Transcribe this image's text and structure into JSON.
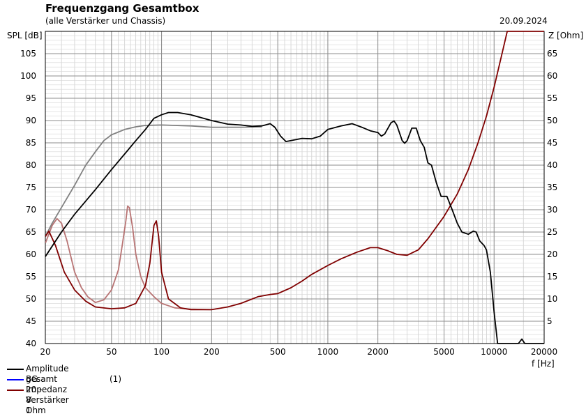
{
  "header": {
    "title": "Frequenzgang Gesamtbox",
    "subtitle": "(alle Verstärker und Chassis)",
    "date": "20.09.2024"
  },
  "chart_data": {
    "type": "line",
    "title": "Frequenzgang Gesamtbox",
    "subtitle": "(alle Verstärker und Chassis)",
    "xlabel": "f [Hz]",
    "ylabel_left": "SPL [dB]",
    "ylabel_right": "Z [Ohm]",
    "x_scale": "log",
    "xlim": [
      20,
      20000
    ],
    "ylim_left": [
      40,
      110
    ],
    "ylim_right": [
      0,
      70
    ],
    "grid": true,
    "legend_position": "bottom-left",
    "x_ticks": [
      20,
      50,
      100,
      200,
      500,
      1000,
      2000,
      5000,
      10000,
      20000
    ],
    "x_tick_labels": [
      "20",
      "50",
      "100",
      "200",
      "500",
      "1000",
      "2000",
      "5000",
      "10000",
      "20000"
    ],
    "y_left_ticks": [
      40,
      45,
      50,
      55,
      60,
      65,
      70,
      75,
      80,
      85,
      90,
      95,
      100,
      105
    ],
    "y_left_tick_labels": [
      "40",
      "45",
      "50",
      "55",
      "60",
      "65",
      "70",
      "75",
      "80",
      "85",
      "90",
      "95",
      "100",
      "105"
    ],
    "y_right_ticks": [
      5,
      10,
      15,
      20,
      25,
      30,
      35,
      40,
      45,
      50,
      55,
      60,
      65
    ],
    "y_right_tick_labels": [
      "5",
      "10",
      "15",
      "20",
      "25",
      "30",
      "35",
      "40",
      "45",
      "50",
      "55",
      "60",
      "65"
    ],
    "legend": [
      {
        "label": "Amplitude gesamt",
        "color": "#000000",
        "note": ""
      },
      {
        "label": "BG 20 - 8 Ohm",
        "color": "#0000ff",
        "note": "(1)"
      },
      {
        "label": "Impedanz Verstärker 1",
        "color": "#800000",
        "note": ""
      }
    ],
    "series": [
      {
        "name": "Amplitude gesamt",
        "axis": "left",
        "color": "#000000",
        "points": [
          [
            20,
            59.5
          ],
          [
            25,
            65
          ],
          [
            30,
            69
          ],
          [
            40,
            74.5
          ],
          [
            50,
            79
          ],
          [
            60,
            82.5
          ],
          [
            70,
            85.5
          ],
          [
            80,
            88
          ],
          [
            90,
            90.5
          ],
          [
            100,
            91.3
          ],
          [
            110,
            91.8
          ],
          [
            125,
            91.8
          ],
          [
            150,
            91.3
          ],
          [
            200,
            90
          ],
          [
            250,
            89.2
          ],
          [
            300,
            89
          ],
          [
            350,
            88.7
          ],
          [
            400,
            88.8
          ],
          [
            450,
            89.3
          ],
          [
            480,
            88.5
          ],
          [
            520,
            86.5
          ],
          [
            560,
            85.3
          ],
          [
            600,
            85.5
          ],
          [
            700,
            86
          ],
          [
            800,
            85.9
          ],
          [
            900,
            86.5
          ],
          [
            1000,
            88
          ],
          [
            1200,
            88.8
          ],
          [
            1400,
            89.3
          ],
          [
            1600,
            88.5
          ],
          [
            1800,
            87.7
          ],
          [
            2000,
            87.3
          ],
          [
            2100,
            86.5
          ],
          [
            2200,
            87
          ],
          [
            2400,
            89.5
          ],
          [
            2500,
            89.9
          ],
          [
            2600,
            89
          ],
          [
            2800,
            85.5
          ],
          [
            2900,
            84.9
          ],
          [
            3000,
            85.5
          ],
          [
            3200,
            88.3
          ],
          [
            3400,
            88.3
          ],
          [
            3600,
            85.5
          ],
          [
            3800,
            84
          ],
          [
            4000,
            80.5
          ],
          [
            4200,
            80
          ],
          [
            4500,
            76
          ],
          [
            4800,
            73
          ],
          [
            5200,
            73
          ],
          [
            5600,
            70
          ],
          [
            6000,
            67
          ],
          [
            6400,
            65
          ],
          [
            7000,
            64.5
          ],
          [
            7500,
            65.2
          ],
          [
            7800,
            65
          ],
          [
            8200,
            63
          ],
          [
            8700,
            62
          ],
          [
            9000,
            61
          ],
          [
            9500,
            56
          ],
          [
            10000,
            47
          ],
          [
            10500,
            40
          ],
          [
            12000,
            40
          ],
          [
            14000,
            40
          ],
          [
            14700,
            41
          ],
          [
            15300,
            40
          ],
          [
            20000,
            40
          ]
        ]
      },
      {
        "name": "",
        "axis": "left",
        "color": "#808080",
        "points": [
          [
            20,
            64
          ],
          [
            22,
            67
          ],
          [
            25,
            70.5
          ],
          [
            30,
            75.5
          ],
          [
            35,
            80
          ],
          [
            40,
            83
          ],
          [
            45,
            85.5
          ],
          [
            50,
            86.8
          ],
          [
            60,
            88
          ],
          [
            70,
            88.6
          ],
          [
            80,
            88.9
          ],
          [
            100,
            89
          ],
          [
            150,
            88.8
          ],
          [
            200,
            88.5
          ],
          [
            300,
            88.5
          ],
          [
            400,
            88.6
          ]
        ]
      },
      {
        "name": "Impedanz Verstärker 1",
        "axis": "right",
        "color": "#800000",
        "points": [
          [
            20,
            24
          ],
          [
            21,
            25.2
          ],
          [
            23,
            22
          ],
          [
            26,
            16
          ],
          [
            30,
            12
          ],
          [
            35,
            9.5
          ],
          [
            40,
            8.2
          ],
          [
            50,
            7.8
          ],
          [
            60,
            8
          ],
          [
            70,
            9
          ],
          [
            80,
            13
          ],
          [
            85,
            18
          ],
          [
            90,
            26.5
          ],
          [
            93,
            27.5
          ],
          [
            96,
            24
          ],
          [
            100,
            16
          ],
          [
            110,
            10
          ],
          [
            130,
            8
          ],
          [
            150,
            7.6
          ],
          [
            200,
            7.6
          ],
          [
            250,
            8.2
          ],
          [
            300,
            9
          ],
          [
            380,
            10.5
          ],
          [
            450,
            11
          ],
          [
            500,
            11.2
          ],
          [
            600,
            12.5
          ],
          [
            700,
            14
          ],
          [
            800,
            15.5
          ],
          [
            1000,
            17.5
          ],
          [
            1200,
            19
          ],
          [
            1500,
            20.5
          ],
          [
            1800,
            21.5
          ],
          [
            2000,
            21.5
          ],
          [
            2300,
            20.8
          ],
          [
            2600,
            20
          ],
          [
            3000,
            19.8
          ],
          [
            3500,
            21
          ],
          [
            4000,
            23.5
          ],
          [
            5000,
            28.5
          ],
          [
            6000,
            33.5
          ],
          [
            7000,
            39
          ],
          [
            8000,
            45
          ],
          [
            9000,
            51
          ],
          [
            10000,
            57.5
          ],
          [
            11000,
            64
          ],
          [
            12000,
            70
          ],
          [
            20000,
            70
          ]
        ]
      },
      {
        "name": "",
        "axis": "right",
        "color": "#b87474",
        "points": [
          [
            20,
            22.5
          ],
          [
            22,
            26.5
          ],
          [
            23.5,
            28
          ],
          [
            25,
            27
          ],
          [
            27,
            23
          ],
          [
            30,
            16
          ],
          [
            33,
            12.5
          ],
          [
            36,
            10.5
          ],
          [
            40,
            9.2
          ],
          [
            45,
            9.8
          ],
          [
            50,
            12
          ],
          [
            55,
            16.5
          ],
          [
            58,
            22
          ],
          [
            61,
            27.5
          ],
          [
            62.5,
            30.8
          ],
          [
            64,
            30.5
          ],
          [
            67,
            26
          ],
          [
            70,
            20
          ],
          [
            75,
            15
          ],
          [
            80,
            12.5
          ],
          [
            90,
            10.5
          ],
          [
            100,
            9
          ],
          [
            120,
            8
          ],
          [
            150,
            7.7
          ],
          [
            200,
            7.6
          ]
        ]
      }
    ]
  }
}
